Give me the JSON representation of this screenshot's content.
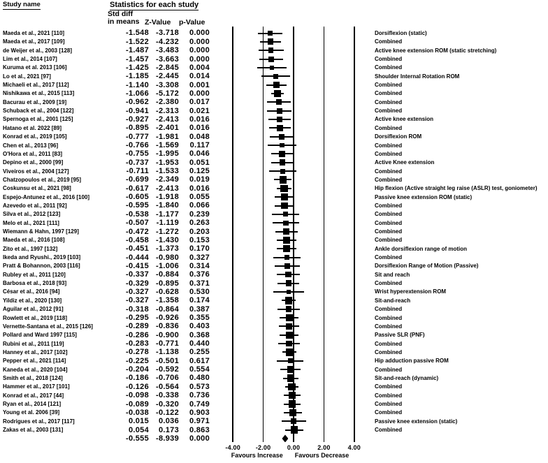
{
  "header": {
    "study_name": "Study name",
    "stats_title": "Statistics for each study",
    "col1_line1": "Std diff",
    "col1_line2": "in means",
    "col2": "Z-Value",
    "col3": "p-Value"
  },
  "axis": {
    "ticks": [
      "-4.00",
      "-2.00",
      "0.00",
      "2.00",
      "4.00"
    ],
    "tick_values": [
      -4,
      -2,
      0,
      2,
      4
    ],
    "left_label": "Favours Increase",
    "right_label": "Favours Decrease"
  },
  "colors": {
    "ink": "#000000",
    "background": "#ffffff"
  },
  "chart_data": {
    "type": "forest",
    "effect_measure": "Std diff in means",
    "x_ticks": [
      -4,
      -2,
      0,
      2,
      4
    ],
    "studies": [
      {
        "name": "Maeda et al., 2021 [110]",
        "mean": "-1.548",
        "z": "-3.718",
        "p": "0.000",
        "outcome": "Dorsiflexion (static)"
      },
      {
        "name": "Maeda et al., 2017 [109]",
        "mean": "-1.522",
        "z": "-4.232",
        "p": "0.000",
        "outcome": "Combined"
      },
      {
        "name": "de Weijer et al., 2003 [128]",
        "mean": "-1.487",
        "z": "-3.483",
        "p": "0.000",
        "outcome": "Active knee extension ROM (static stretching)"
      },
      {
        "name": "Lim et al., 2014 [107]",
        "mean": "-1.457",
        "z": "-3.663",
        "p": "0.000",
        "outcome": "Combined"
      },
      {
        "name": "Kuruma et al. 2013 [106]",
        "mean": "-1.425",
        "z": "-2.845",
        "p": "0.004",
        "outcome": "Combined"
      },
      {
        "name": "Lo et al., 2021 [97]",
        "mean": "-1.185",
        "z": "-2.445",
        "p": "0.014",
        "outcome": "Shoulder Internal Rotation ROM"
      },
      {
        "name": "Michaeli et al., 2017 [112]",
        "mean": "-1.140",
        "z": "-3.308",
        "p": "0.001",
        "outcome": "Combined"
      },
      {
        "name": "Nishikawa et al., 2015 [113]",
        "mean": "-1.066",
        "z": "-5.172",
        "p": "0.000",
        "outcome": "Combined"
      },
      {
        "name": "Bacurau et al., 2009 [19]",
        "mean": "-0.962",
        "z": "-2.380",
        "p": "0.017",
        "outcome": "Combined"
      },
      {
        "name": "Schuback et al., 2004 [122]",
        "mean": "-0.941",
        "z": "-2.313",
        "p": "0.021",
        "outcome": "Combined"
      },
      {
        "name": "Spernoga et al., 2001 [125]",
        "mean": "-0.927",
        "z": "-2.413",
        "p": "0.016",
        "outcome": "Active knee extension"
      },
      {
        "name": "Hatano et al. 2022 [89]",
        "mean": "-0.895",
        "z": "-2.401",
        "p": "0.016",
        "outcome": "Combined"
      },
      {
        "name": "Konrad et al., 2019 [105]",
        "mean": "-0.777",
        "z": "-1.981",
        "p": "0.048",
        "outcome": "Dorsiflexion ROM"
      },
      {
        "name": "Chen et al., 2013 [96]",
        "mean": "-0.766",
        "z": "-1.569",
        "p": "0.117",
        "outcome": "Combined"
      },
      {
        "name": "O'Hora et al., 2011 [83]",
        "mean": "-0.755",
        "z": "-1.995",
        "p": "0.046",
        "outcome": "Combined"
      },
      {
        "name": "Depino et al., 2000 [99]",
        "mean": "-0.737",
        "z": "-1.953",
        "p": "0.051",
        "outcome": "Active Knee extension"
      },
      {
        "name": "Viveiros et al., 2004 [127]",
        "mean": "-0.711",
        "z": "-1.533",
        "p": "0.125",
        "outcome": "Combined"
      },
      {
        "name": "Chatzopoulos et al., 2019 [95]",
        "mean": "-0.699",
        "z": "-2.349",
        "p": "0.019",
        "outcome": "Combined"
      },
      {
        "name": "Coskunsu et al., 2021 [98]",
        "mean": "-0.617",
        "z": "-2.413",
        "p": "0.016",
        "outcome": "Hip flexion (Active straight leg raise (ASLR) test,  goniometer)"
      },
      {
        "name": "Espejo-Antunez et al., 2016 [100]",
        "mean": "-0.605",
        "z": "-1.918",
        "p": "0.055",
        "outcome": "Passive knee extension ROM (static)"
      },
      {
        "name": "Azevedo et al., 2011 [92]",
        "mean": "-0.595",
        "z": "-1.840",
        "p": "0.066",
        "outcome": "Combined"
      },
      {
        "name": "Silva et al., 2012 [123]",
        "mean": "-0.538",
        "z": "-1.177",
        "p": "0.239",
        "outcome": "Combined"
      },
      {
        "name": "Melo et al., 2021 [111]",
        "mean": "-0.507",
        "z": "-1.119",
        "p": "0.263",
        "outcome": "Combined"
      },
      {
        "name": "Wiemann & Hahn, 1997 [129]",
        "mean": "-0.472",
        "z": "-1.272",
        "p": "0.203",
        "outcome": "Combined"
      },
      {
        "name": "Maeda et al., 2016 [108]",
        "mean": "-0.458",
        "z": "-1.430",
        "p": "0.153",
        "outcome": "Combined"
      },
      {
        "name": "Zito et al., 1997 [132]",
        "mean": "-0.451",
        "z": "-1.373",
        "p": "0.170",
        "outcome": "Ankle dorsiflexion range of motion"
      },
      {
        "name": "Ikeda and Ryushi., 2019 [103]",
        "mean": "-0.444",
        "z": "-0.980",
        "p": "0.327",
        "outcome": "Combined"
      },
      {
        "name": "Pratt & Bohannon, 2003 [116]",
        "mean": "-0.415",
        "z": "-1.006",
        "p": "0.314",
        "outcome": "Dorsiflexion Range of Motion (Passive)"
      },
      {
        "name": "Rubley et al., 2011 [120]",
        "mean": "-0.337",
        "z": "-0.884",
        "p": "0.376",
        "outcome": "Sit and reach"
      },
      {
        "name": "Barbosa et al., 2018 [93]",
        "mean": "-0.329",
        "z": "-0.895",
        "p": "0.371",
        "outcome": "Combined"
      },
      {
        "name": "César et al., 2016 [94]",
        "mean": "-0.327",
        "z": "-0.628",
        "p": "0.530",
        "outcome": "Wrist hyperextension ROM"
      },
      {
        "name": "Yildiz et al., 2020 [130]",
        "mean": "-0.327",
        "z": "-1.358",
        "p": "0.174",
        "outcome": "Sit-and-reach"
      },
      {
        "name": "Aguilar et al., 2012 [91]",
        "mean": "-0.318",
        "z": "-0.864",
        "p": "0.387",
        "outcome": "Combined"
      },
      {
        "name": "Rowlett et al., 2019 [118]",
        "mean": "-0.295",
        "z": "-0.926",
        "p": "0.355",
        "outcome": "Combined"
      },
      {
        "name": "Vernette-Santana et al., 2015 [126]",
        "mean": "-0.289",
        "z": "-0.836",
        "p": "0.403",
        "outcome": "Combined"
      },
      {
        "name": "Pollard and Ward 1997 [115]",
        "mean": "-0.286",
        "z": "-0.900",
        "p": "0.368",
        "outcome": "Passive SLR (PNF)"
      },
      {
        "name": "Rubini et al., 2011 [119]",
        "mean": "-0.283",
        "z": "-0.771",
        "p": "0.440",
        "outcome": "Combined"
      },
      {
        "name": "Hanney et al., 2017 [102]",
        "mean": "-0.278",
        "z": "-1.138",
        "p": "0.255",
        "outcome": "Combined"
      },
      {
        "name": "Pepper et al., 2021 [114]",
        "mean": "-0.225",
        "z": "-0.501",
        "p": "0.617",
        "outcome": "Hip adduction passive ROM"
      },
      {
        "name": "Kaneda et al., 2020 [104]",
        "mean": "-0.204",
        "z": "-0.592",
        "p": "0.554",
        "outcome": "Combined"
      },
      {
        "name": "Smith et al., 2018 [124]",
        "mean": "-0.186",
        "z": "-0.706",
        "p": "0.480",
        "outcome": "Sit-and-reach (dynamic)"
      },
      {
        "name": "Hammer et al., 2017 [101]",
        "mean": "-0.126",
        "z": "-0.564",
        "p": "0.573",
        "outcome": "Combined"
      },
      {
        "name": "Konrad et al., 2017 [44]",
        "mean": "-0.098",
        "z": "-0.338",
        "p": "0.736",
        "outcome": "Combined"
      },
      {
        "name": "Ryan et al., 2014 [121]",
        "mean": "-0.089",
        "z": "-0.320",
        "p": "0.749",
        "outcome": "Combined"
      },
      {
        "name": "Young et al. 2006 [39]",
        "mean": "-0.038",
        "z": "-0.122",
        "p": "0.903",
        "outcome": "Combined"
      },
      {
        "name": "Rodrigues et al., 2017 [117]",
        "mean": "0.015",
        "z": "0.036",
        "p": "0.971",
        "outcome": "Passive knee extension (static)"
      },
      {
        "name": "Zakas et al., 2003 [131]",
        "mean": "0.054",
        "z": "0.173",
        "p": "0.863",
        "outcome": "Combined"
      },
      {
        "name": "",
        "mean": "-0.555",
        "z": "-8.939",
        "p": "0.000",
        "outcome": "",
        "pooled": true
      }
    ]
  }
}
